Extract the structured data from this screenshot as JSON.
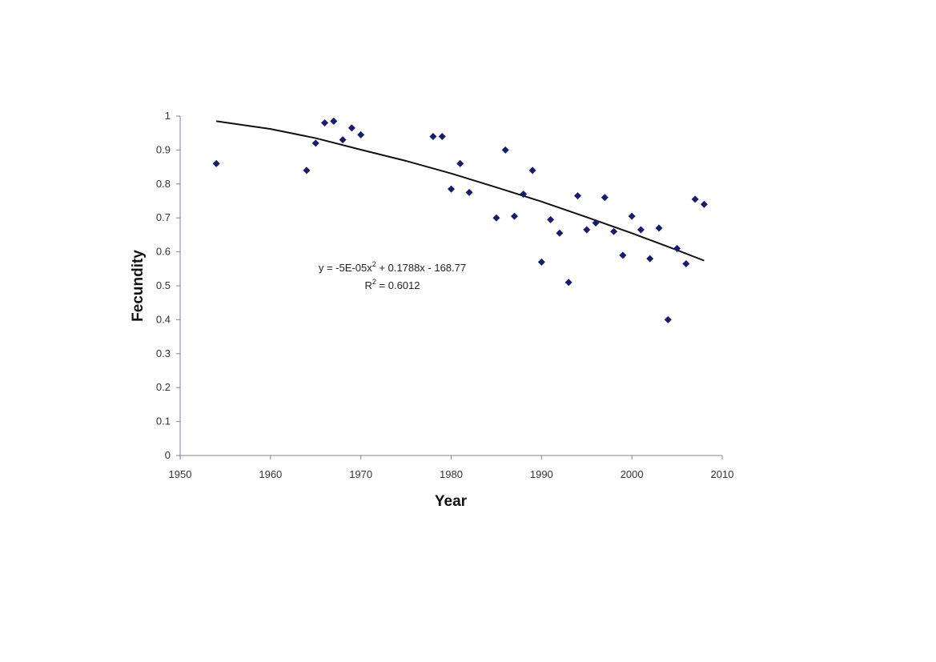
{
  "chart_data": {
    "type": "scatter",
    "title": "",
    "xlabel": "Year",
    "ylabel": "Fecundity",
    "xlim": [
      1950,
      2010
    ],
    "ylim": [
      0,
      1
    ],
    "x_ticks": [
      1950,
      1960,
      1970,
      1980,
      1990,
      2000,
      2010
    ],
    "y_ticks": [
      0,
      0.1,
      0.2,
      0.3,
      0.4,
      0.5,
      0.6,
      0.7,
      0.8,
      0.9,
      1
    ],
    "y_tick_labels": [
      "0",
      "0.1",
      "0.2",
      "0.3",
      "0.4",
      "0.5",
      "0.6",
      "0.7",
      "0.8",
      "0.9",
      "1"
    ],
    "grid": false,
    "marker_color": "#1a1a6e",
    "series": [
      {
        "points": [
          [
            1954,
            0.86
          ],
          [
            1964,
            0.84
          ],
          [
            1965,
            0.92
          ],
          [
            1966,
            0.98
          ],
          [
            1967,
            0.985
          ],
          [
            1968,
            0.93
          ],
          [
            1969,
            0.965
          ],
          [
            1970,
            0.945
          ],
          [
            1978,
            0.94
          ],
          [
            1979,
            0.94
          ],
          [
            1980,
            0.785
          ],
          [
            1981,
            0.86
          ],
          [
            1982,
            0.775
          ],
          [
            1985,
            0.7
          ],
          [
            1986,
            0.9
          ],
          [
            1987,
            0.705
          ],
          [
            1988,
            0.77
          ],
          [
            1989,
            0.84
          ],
          [
            1990,
            0.57
          ],
          [
            1991,
            0.695
          ],
          [
            1992,
            0.655
          ],
          [
            1993,
            0.51
          ],
          [
            1994,
            0.765
          ],
          [
            1995,
            0.665
          ],
          [
            1996,
            0.685
          ],
          [
            1997,
            0.76
          ],
          [
            1998,
            0.66
          ],
          [
            1999,
            0.59
          ],
          [
            2000,
            0.705
          ],
          [
            2001,
            0.665
          ],
          [
            2002,
            0.58
          ],
          [
            2003,
            0.67
          ],
          [
            2004,
            0.4
          ],
          [
            2005,
            0.61
          ],
          [
            2006,
            0.565
          ],
          [
            2007,
            0.755
          ],
          [
            2008,
            0.74
          ]
        ]
      }
    ],
    "trendline": {
      "type": "polynomial",
      "x_range": [
        1954,
        2008
      ],
      "points": [
        [
          1954,
          0.985
        ],
        [
          1960,
          0.962
        ],
        [
          1965,
          0.935
        ],
        [
          1970,
          0.901
        ],
        [
          1975,
          0.868
        ],
        [
          1980,
          0.831
        ],
        [
          1985,
          0.79
        ],
        [
          1990,
          0.748
        ],
        [
          1995,
          0.702
        ],
        [
          2000,
          0.655
        ],
        [
          2005,
          0.605
        ],
        [
          2008,
          0.574
        ]
      ],
      "color": "#111111"
    },
    "annotations": {
      "equation": {
        "prefix": "y = -5E-05x",
        "exponent": "2",
        "suffix": " + 0.1788x - 168.77"
      },
      "r_squared": {
        "prefix": "R",
        "exponent": "2",
        "suffix": " = 0.6012"
      }
    }
  }
}
